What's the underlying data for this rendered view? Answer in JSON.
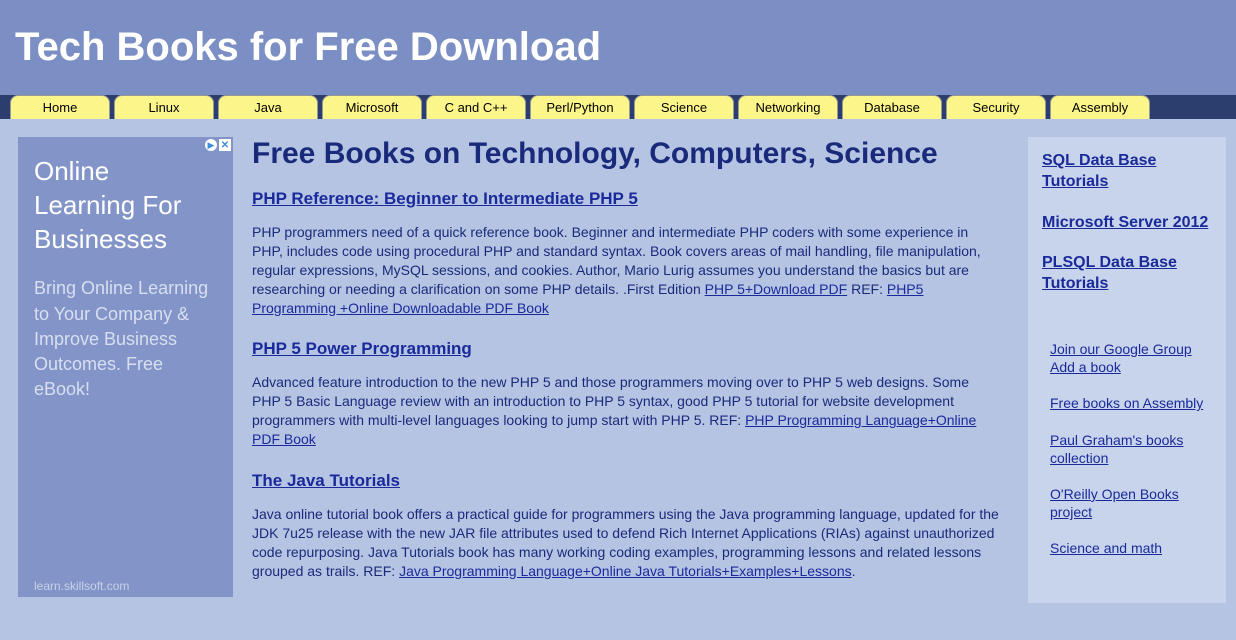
{
  "header": {
    "title": "Tech Books for Free Download"
  },
  "nav": {
    "tabs": [
      "Home",
      "Linux",
      "Java",
      "Microsoft",
      "C and C++",
      "Perl/Python",
      "Science",
      "Networking",
      "Database",
      "Security",
      "Assembly"
    ]
  },
  "ad": {
    "title": "Online Learning For Businesses",
    "subtitle": "Bring Online Learning to Your Company & Improve Business Outcomes. Free eBook!",
    "domain": "learn.skillsoft.com"
  },
  "content": {
    "heading": "Free Books on Technology, Computers, Science",
    "books": [
      {
        "title": "PHP Reference: Beginner to Intermediate PHP 5",
        "desc_pre": "PHP programmers need of a quick reference book. Beginner and intermediate PHP coders with some experience in PHP, includes code using procedural PHP and standard syntax. Book covers areas of mail handling, file manipulation, regular expressions, MySQL sessions, and cookies. Author, Mario Lurig assumes you understand the basics but are researching or needing a clarification on some PHP details. .First Edition ",
        "link1": "PHP 5+Download PDF",
        "mid": " REF: ",
        "link2": "PHP5 Programming +Online Downloadable PDF Book"
      },
      {
        "title": "PHP 5 Power Programming",
        "desc_pre": "Advanced feature introduction to the new PHP 5 and those programmers moving over to PHP 5 web designs. Some PHP 5 Basic Language review with an introduction to PHP 5 syntax, good PHP 5 tutorial for website development programmers with multi-level languages looking to jump start with PHP 5. REF: ",
        "link1": "PHP Programming Language+Online PDF Book",
        "mid": "",
        "link2": ""
      },
      {
        "title": "The Java Tutorials",
        "desc_pre": "Java online tutorial book offers a practical guide for programmers using the Java programming language, updated for the JDK 7u25 release with the new JAR file attributes used to defend Rich Internet Applications (RIAs) against unauthorized code repurposing. Java Tutorials book has many working coding examples, programming lessons and related lessons grouped as trails. REF: ",
        "link1": "Java Programming Language+Online Java Tutorials+Examples+Lessons",
        "mid": ".",
        "link2": ""
      }
    ]
  },
  "sidebar": {
    "bold_links": [
      "SQL Data Base Tutorials",
      "Microsoft Server 2012",
      "PLSQL Data Base Tutorials"
    ],
    "links": [
      "Join our Google Group Add a book",
      "Free books on Assembly",
      "Paul Graham's books collection",
      "O'Reilly Open Books project",
      "Science and math"
    ]
  },
  "colors": {
    "header_bg": "#7b8fc4",
    "body_bg": "#b5c4e3",
    "navbar_bg": "#2c3e6e",
    "tab_bg": "#fcf58a",
    "link_color": "#1a2a9a",
    "text_color": "#1a2a7a",
    "sidebar_bg": "#c8d4ec",
    "ad_bg": "#8395c8"
  }
}
